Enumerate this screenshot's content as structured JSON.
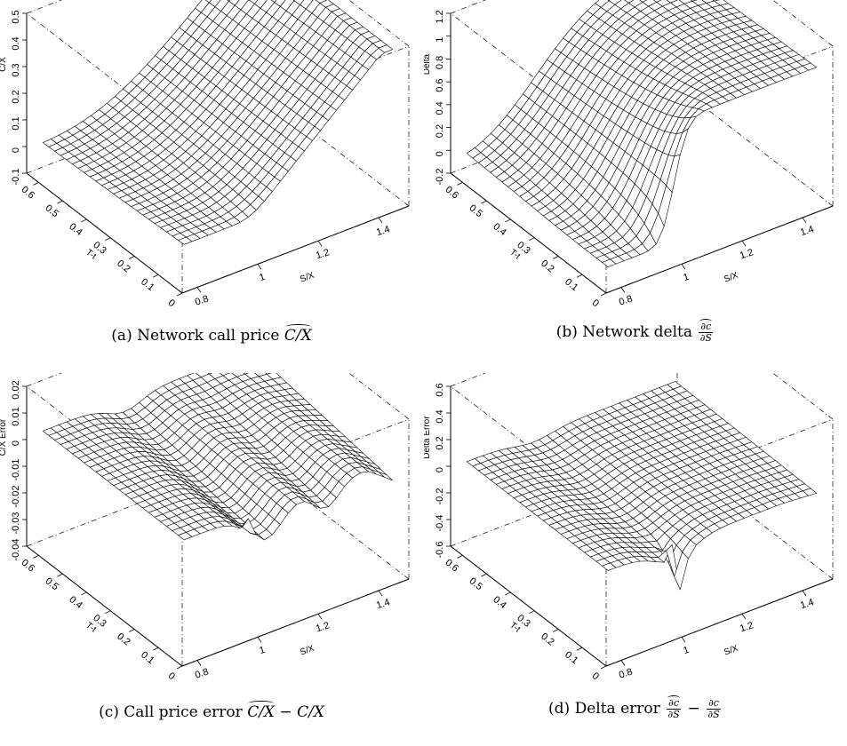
{
  "chart_data": [
    {
      "type": "surface",
      "xlabel": "S/X",
      "ylabel": "T-t",
      "zlabel": "C/X",
      "x_ticks": [
        "0.8",
        "1",
        "1.2",
        "1.4"
      ],
      "y_ticks": [
        "0",
        "0.1",
        "0.2",
        "0.3",
        "0.4",
        "0.5",
        "0.6"
      ],
      "z_ticks": [
        "-0.1",
        "0",
        "0.1",
        "0.2",
        "0.3",
        "0.4",
        "0.5"
      ],
      "xlim": [
        0.75,
        1.5
      ],
      "ylim": [
        0,
        0.65
      ],
      "zlim": [
        -0.1,
        0.5
      ],
      "surface": "call_price",
      "caption_prefix": "(a) Network call price",
      "caption_math": "C/X"
    },
    {
      "type": "surface",
      "xlabel": "S/X",
      "ylabel": "T-t",
      "zlabel": "Delta",
      "x_ticks": [
        "0.8",
        "1",
        "1.2",
        "1.4"
      ],
      "y_ticks": [
        "0",
        "0.1",
        "0.2",
        "0.3",
        "0.4",
        "0.5",
        "0.6"
      ],
      "z_ticks": [
        "-0.2",
        "0",
        "0.2",
        "0.4",
        "0.6",
        "0.8",
        "1",
        "1.2"
      ],
      "xlim": [
        0.75,
        1.5
      ],
      "ylim": [
        0,
        0.65
      ],
      "zlim": [
        -0.2,
        1.2
      ],
      "surface": "delta",
      "caption_prefix": "(b) Network delta",
      "caption_frac": {
        "num": "∂c",
        "den": "∂S"
      }
    },
    {
      "type": "surface",
      "xlabel": "S/X",
      "ylabel": "T-t",
      "zlabel": "C/X Error",
      "x_ticks": [
        "0.8",
        "1",
        "1.2",
        "1.4"
      ],
      "y_ticks": [
        "0",
        "0.1",
        "0.2",
        "0.3",
        "0.4",
        "0.5",
        "0.6"
      ],
      "z_ticks": [
        "-0.04",
        "-0.03",
        "-0.02",
        "-0.01",
        "0",
        "0.01",
        "0.02"
      ],
      "xlim": [
        0.75,
        1.5
      ],
      "ylim": [
        0,
        0.65
      ],
      "zlim": [
        -0.04,
        0.02
      ],
      "surface": "price_error",
      "caption_prefix": "(c) Call price error",
      "caption_math": "C/X",
      "caption_minus": "− C/X"
    },
    {
      "type": "surface",
      "xlabel": "S/X",
      "ylabel": "T-t",
      "zlabel": "Delta Error",
      "x_ticks": [
        "0.8",
        "1",
        "1.2",
        "1.4"
      ],
      "y_ticks": [
        "0",
        "0.1",
        "0.2",
        "0.3",
        "0.4",
        "0.5",
        "0.6"
      ],
      "z_ticks": [
        "-0.6",
        "-0.4",
        "-0.2",
        "0",
        "0.2",
        "0.4",
        "0.6"
      ],
      "xlim": [
        0.75,
        1.5
      ],
      "ylim": [
        0,
        0.65
      ],
      "zlim": [
        -0.6,
        0.6
      ],
      "surface": "delta_error",
      "caption_prefix": "(d) Delta error",
      "caption_frac": {
        "num": "∂c",
        "den": "∂S"
      },
      "caption_frac2": {
        "num": "∂c",
        "den": "∂S"
      }
    }
  ]
}
